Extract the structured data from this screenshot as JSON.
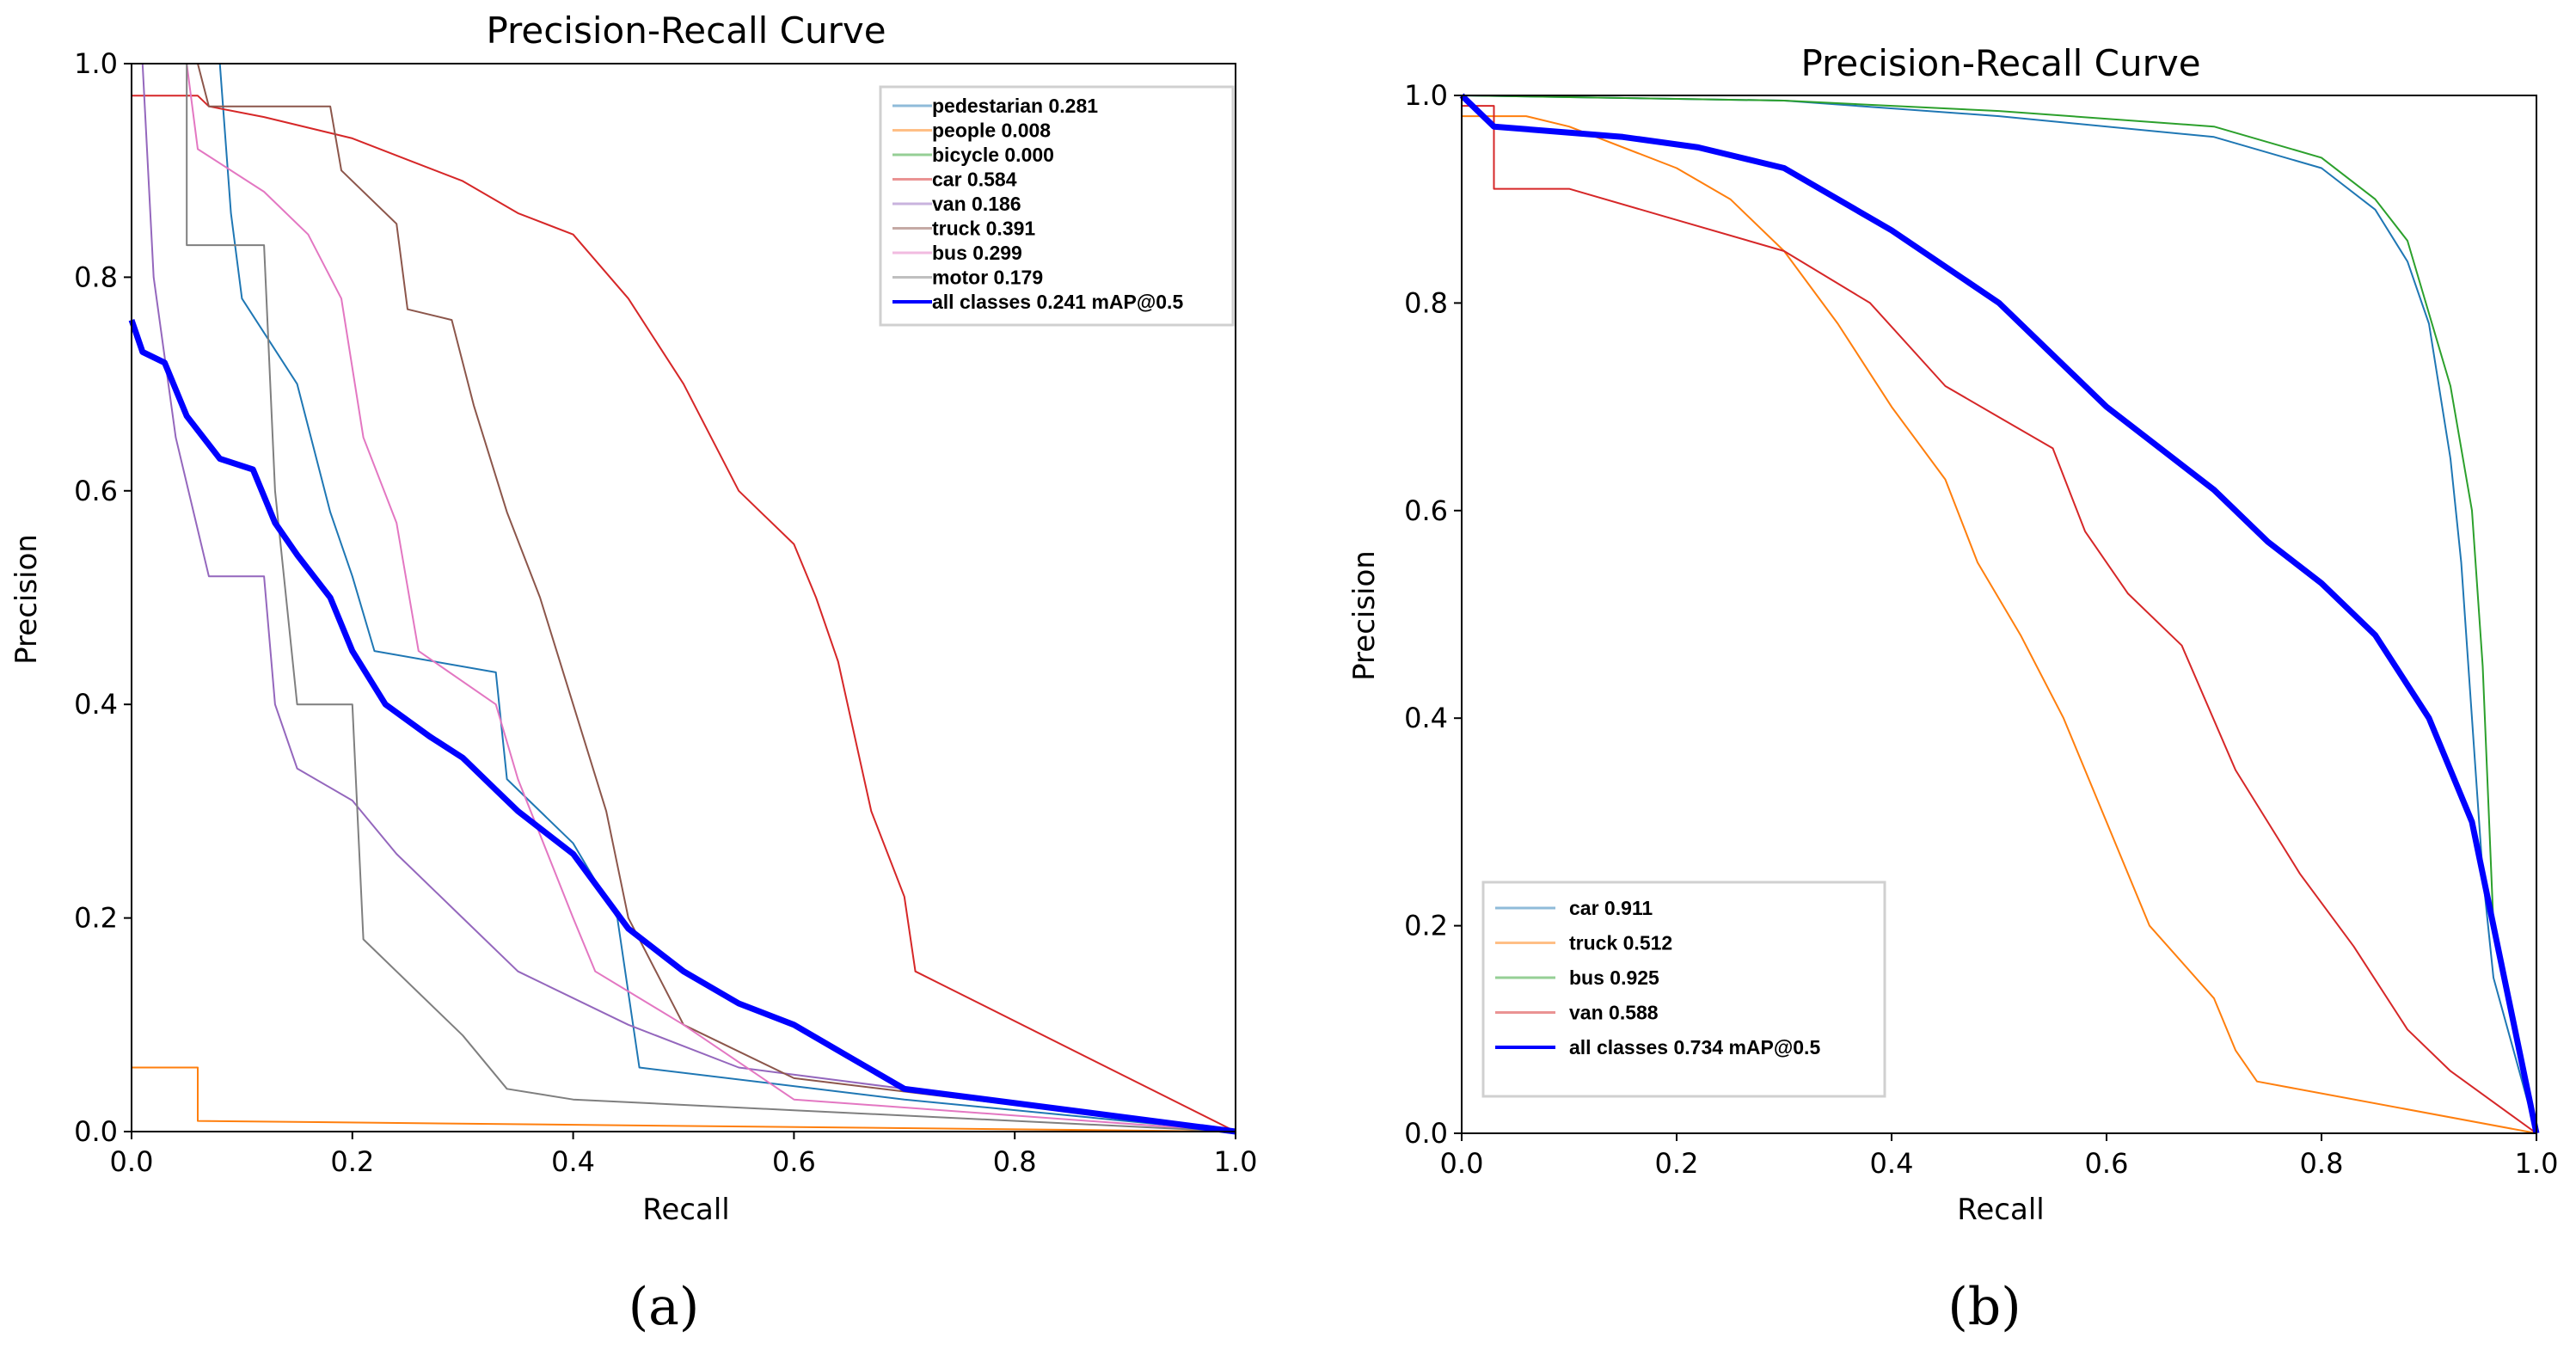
{
  "chart_data": [
    {
      "type": "line",
      "panel_label": "(a)",
      "title": "Precision-Recall Curve",
      "xlabel": "Recall",
      "ylabel": "Precision",
      "xlim": [
        0,
        1
      ],
      "ylim": [
        0,
        1
      ],
      "xticks": [
        "0.0",
        "0.2",
        "0.4",
        "0.6",
        "0.8",
        "1.0"
      ],
      "yticks": [
        "0.0",
        "0.2",
        "0.4",
        "0.6",
        "0.8",
        "1.0"
      ],
      "grid": false,
      "legend_position": "top-right",
      "series": [
        {
          "name": "pedestarian 0.281",
          "color": "#1f77b4",
          "width": 2,
          "points": [
            [
              0.08,
              1
            ],
            [
              0.09,
              0.86
            ],
            [
              0.1,
              0.78
            ],
            [
              0.15,
              0.7
            ],
            [
              0.18,
              0.58
            ],
            [
              0.2,
              0.52
            ],
            [
              0.22,
              0.45
            ],
            [
              0.33,
              0.43
            ],
            [
              0.34,
              0.33
            ],
            [
              0.4,
              0.27
            ],
            [
              0.44,
              0.2
            ],
            [
              0.46,
              0.06
            ],
            [
              0.7,
              0.03
            ],
            [
              1,
              0
            ]
          ]
        },
        {
          "name": "people 0.008",
          "color": "#ff7f0e",
          "width": 2,
          "points": [
            [
              0,
              0.06
            ],
            [
              0.06,
              0.06
            ],
            [
              0.06,
              0.01
            ],
            [
              1,
              0
            ]
          ]
        },
        {
          "name": "bicycle 0.000",
          "color": "#2ca02c",
          "width": 2,
          "points": []
        },
        {
          "name": "car 0.584",
          "color": "#d62728",
          "width": 2,
          "points": [
            [
              0,
              0.97
            ],
            [
              0.06,
              0.97
            ],
            [
              0.07,
              0.96
            ],
            [
              0.12,
              0.95
            ],
            [
              0.2,
              0.93
            ],
            [
              0.25,
              0.91
            ],
            [
              0.3,
              0.89
            ],
            [
              0.35,
              0.86
            ],
            [
              0.4,
              0.84
            ],
            [
              0.45,
              0.78
            ],
            [
              0.5,
              0.7
            ],
            [
              0.55,
              0.6
            ],
            [
              0.6,
              0.55
            ],
            [
              0.62,
              0.5
            ],
            [
              0.64,
              0.44
            ],
            [
              0.67,
              0.3
            ],
            [
              0.7,
              0.22
            ],
            [
              0.71,
              0.15
            ],
            [
              1,
              0
            ]
          ]
        },
        {
          "name": "van 0.186",
          "color": "#9467bd",
          "width": 2,
          "points": [
            [
              0.01,
              1
            ],
            [
              0.02,
              0.8
            ],
            [
              0.04,
              0.65
            ],
            [
              0.07,
              0.52
            ],
            [
              0.12,
              0.52
            ],
            [
              0.13,
              0.4
            ],
            [
              0.15,
              0.34
            ],
            [
              0.2,
              0.31
            ],
            [
              0.24,
              0.26
            ],
            [
              0.3,
              0.2
            ],
            [
              0.35,
              0.15
            ],
            [
              0.45,
              0.1
            ],
            [
              0.55,
              0.06
            ],
            [
              0.7,
              0.04
            ],
            [
              1,
              0
            ]
          ]
        },
        {
          "name": "truck 0.391",
          "color": "#8c564b",
          "width": 2,
          "points": [
            [
              0.06,
              1
            ],
            [
              0.07,
              0.96
            ],
            [
              0.18,
              0.96
            ],
            [
              0.19,
              0.9
            ],
            [
              0.24,
              0.85
            ],
            [
              0.25,
              0.77
            ],
            [
              0.29,
              0.76
            ],
            [
              0.31,
              0.68
            ],
            [
              0.34,
              0.58
            ],
            [
              0.37,
              0.5
            ],
            [
              0.4,
              0.4
            ],
            [
              0.43,
              0.3
            ],
            [
              0.45,
              0.2
            ],
            [
              0.5,
              0.1
            ],
            [
              0.6,
              0.05
            ],
            [
              1,
              0
            ]
          ]
        },
        {
          "name": "bus 0.299",
          "color": "#e377c2",
          "width": 2,
          "points": [
            [
              0.05,
              1
            ],
            [
              0.06,
              0.92
            ],
            [
              0.12,
              0.88
            ],
            [
              0.16,
              0.84
            ],
            [
              0.19,
              0.78
            ],
            [
              0.21,
              0.65
            ],
            [
              0.24,
              0.57
            ],
            [
              0.26,
              0.45
            ],
            [
              0.33,
              0.4
            ],
            [
              0.35,
              0.33
            ],
            [
              0.4,
              0.2
            ],
            [
              0.42,
              0.15
            ],
            [
              0.5,
              0.1
            ],
            [
              0.6,
              0.03
            ],
            [
              1,
              0
            ]
          ]
        },
        {
          "name": "motor 0.179",
          "color": "#7f7f7f",
          "width": 2,
          "points": [
            [
              0.05,
              1
            ],
            [
              0.05,
              0.83
            ],
            [
              0.12,
              0.83
            ],
            [
              0.13,
              0.6
            ],
            [
              0.15,
              0.4
            ],
            [
              0.2,
              0.4
            ],
            [
              0.21,
              0.18
            ],
            [
              0.26,
              0.13
            ],
            [
              0.3,
              0.09
            ],
            [
              0.34,
              0.04
            ],
            [
              0.4,
              0.03
            ],
            [
              0.6,
              0.02
            ],
            [
              1,
              0
            ]
          ]
        },
        {
          "name": "all classes 0.241 mAP@0.5",
          "color": "#0000ff",
          "width": 7,
          "points": [
            [
              0,
              0.76
            ],
            [
              0.01,
              0.73
            ],
            [
              0.03,
              0.72
            ],
            [
              0.05,
              0.67
            ],
            [
              0.08,
              0.63
            ],
            [
              0.11,
              0.62
            ],
            [
              0.13,
              0.57
            ],
            [
              0.15,
              0.54
            ],
            [
              0.18,
              0.5
            ],
            [
              0.2,
              0.45
            ],
            [
              0.23,
              0.4
            ],
            [
              0.27,
              0.37
            ],
            [
              0.3,
              0.35
            ],
            [
              0.33,
              0.32
            ],
            [
              0.35,
              0.3
            ],
            [
              0.4,
              0.26
            ],
            [
              0.45,
              0.19
            ],
            [
              0.5,
              0.15
            ],
            [
              0.55,
              0.12
            ],
            [
              0.6,
              0.1
            ],
            [
              0.65,
              0.07
            ],
            [
              0.7,
              0.04
            ],
            [
              1,
              0
            ]
          ]
        }
      ]
    },
    {
      "type": "line",
      "panel_label": "(b)",
      "title": "Precision-Recall Curve",
      "xlabel": "Recall",
      "ylabel": "Precision",
      "xlim": [
        0,
        1
      ],
      "ylim": [
        0,
        1
      ],
      "xticks": [
        "0.0",
        "0.2",
        "0.4",
        "0.6",
        "0.8",
        "1.0"
      ],
      "yticks": [
        "0.0",
        "0.2",
        "0.4",
        "0.6",
        "0.8",
        "1.0"
      ],
      "grid": false,
      "legend_position": "bottom-left",
      "series": [
        {
          "name": "car 0.911",
          "color": "#1f77b4",
          "width": 2,
          "points": [
            [
              0,
              1
            ],
            [
              0.3,
              0.995
            ],
            [
              0.5,
              0.98
            ],
            [
              0.7,
              0.96
            ],
            [
              0.8,
              0.93
            ],
            [
              0.85,
              0.89
            ],
            [
              0.88,
              0.84
            ],
            [
              0.9,
              0.78
            ],
            [
              0.92,
              0.65
            ],
            [
              0.93,
              0.55
            ],
            [
              0.94,
              0.4
            ],
            [
              0.95,
              0.25
            ],
            [
              0.96,
              0.15
            ],
            [
              1,
              0
            ]
          ]
        },
        {
          "name": "truck 0.512",
          "color": "#ff7f0e",
          "width": 2,
          "points": [
            [
              0,
              0.98
            ],
            [
              0.06,
              0.98
            ],
            [
              0.1,
              0.97
            ],
            [
              0.2,
              0.93
            ],
            [
              0.25,
              0.9
            ],
            [
              0.3,
              0.85
            ],
            [
              0.35,
              0.78
            ],
            [
              0.4,
              0.7
            ],
            [
              0.45,
              0.63
            ],
            [
              0.48,
              0.55
            ],
            [
              0.52,
              0.48
            ],
            [
              0.56,
              0.4
            ],
            [
              0.6,
              0.3
            ],
            [
              0.64,
              0.2
            ],
            [
              0.7,
              0.13
            ],
            [
              0.72,
              0.08
            ],
            [
              0.74,
              0.05
            ],
            [
              1,
              0
            ]
          ]
        },
        {
          "name": "bus 0.925",
          "color": "#2ca02c",
          "width": 2,
          "points": [
            [
              0,
              1
            ],
            [
              0.3,
              0.995
            ],
            [
              0.5,
              0.985
            ],
            [
              0.7,
              0.97
            ],
            [
              0.8,
              0.94
            ],
            [
              0.85,
              0.9
            ],
            [
              0.88,
              0.86
            ],
            [
              0.9,
              0.79
            ],
            [
              0.92,
              0.72
            ],
            [
              0.94,
              0.6
            ],
            [
              0.95,
              0.45
            ],
            [
              0.96,
              0.2
            ],
            [
              0.98,
              0.1
            ],
            [
              1,
              0
            ]
          ]
        },
        {
          "name": "van 0.588",
          "color": "#d62728",
          "width": 2,
          "points": [
            [
              0,
              0.99
            ],
            [
              0.03,
              0.99
            ],
            [
              0.03,
              0.91
            ],
            [
              0.1,
              0.91
            ],
            [
              0.2,
              0.88
            ],
            [
              0.3,
              0.85
            ],
            [
              0.38,
              0.8
            ],
            [
              0.45,
              0.72
            ],
            [
              0.5,
              0.69
            ],
            [
              0.55,
              0.66
            ],
            [
              0.58,
              0.58
            ],
            [
              0.62,
              0.52
            ],
            [
              0.67,
              0.47
            ],
            [
              0.72,
              0.35
            ],
            [
              0.78,
              0.25
            ],
            [
              0.83,
              0.18
            ],
            [
              0.88,
              0.1
            ],
            [
              0.92,
              0.06
            ],
            [
              1,
              0
            ]
          ]
        },
        {
          "name": "all classes 0.734 mAP@0.5",
          "color": "#0000ff",
          "width": 7,
          "points": [
            [
              0,
              1
            ],
            [
              0.03,
              0.97
            ],
            [
              0.15,
              0.96
            ],
            [
              0.22,
              0.95
            ],
            [
              0.3,
              0.93
            ],
            [
              0.4,
              0.87
            ],
            [
              0.5,
              0.8
            ],
            [
              0.55,
              0.75
            ],
            [
              0.6,
              0.7
            ],
            [
              0.7,
              0.62
            ],
            [
              0.75,
              0.57
            ],
            [
              0.8,
              0.53
            ],
            [
              0.85,
              0.48
            ],
            [
              0.9,
              0.4
            ],
            [
              0.94,
              0.3
            ],
            [
              0.97,
              0.15
            ],
            [
              0.99,
              0.05
            ],
            [
              1,
              0
            ]
          ]
        }
      ]
    }
  ]
}
